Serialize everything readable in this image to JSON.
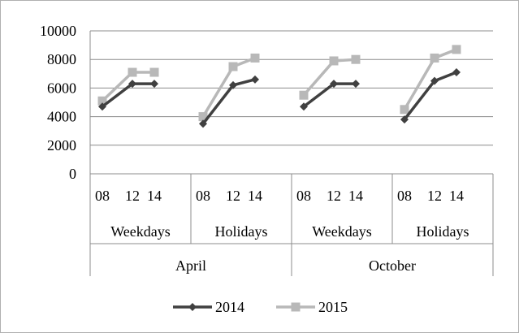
{
  "chart_data": {
    "type": "line",
    "title": "",
    "xlabel": "",
    "ylabel": "",
    "ylim": [
      0,
      10000
    ],
    "yticks": [
      "0",
      "2000",
      "4000",
      "6000",
      "8000",
      "10000"
    ],
    "grid": true,
    "legend": "bottom",
    "months": [
      "April",
      "October"
    ],
    "daytypes": [
      "Weekdays",
      "Holidays",
      "Weekdays",
      "Holidays"
    ],
    "hours": [
      "08",
      "12",
      "14"
    ],
    "series": [
      {
        "name": "2014",
        "color": "#404040",
        "marker": "diamond",
        "groups": [
          [
            4700,
            6300,
            6300
          ],
          [
            3500,
            6200,
            6600
          ],
          [
            4700,
            6300,
            6300
          ],
          [
            3800,
            6500,
            7100
          ]
        ]
      },
      {
        "name": "2015",
        "color": "#b8b8b8",
        "marker": "square",
        "groups": [
          [
            5100,
            7100,
            7100
          ],
          [
            4000,
            7500,
            8100
          ],
          [
            5500,
            7900,
            8000
          ],
          [
            4500,
            8100,
            8700
          ]
        ]
      }
    ]
  }
}
